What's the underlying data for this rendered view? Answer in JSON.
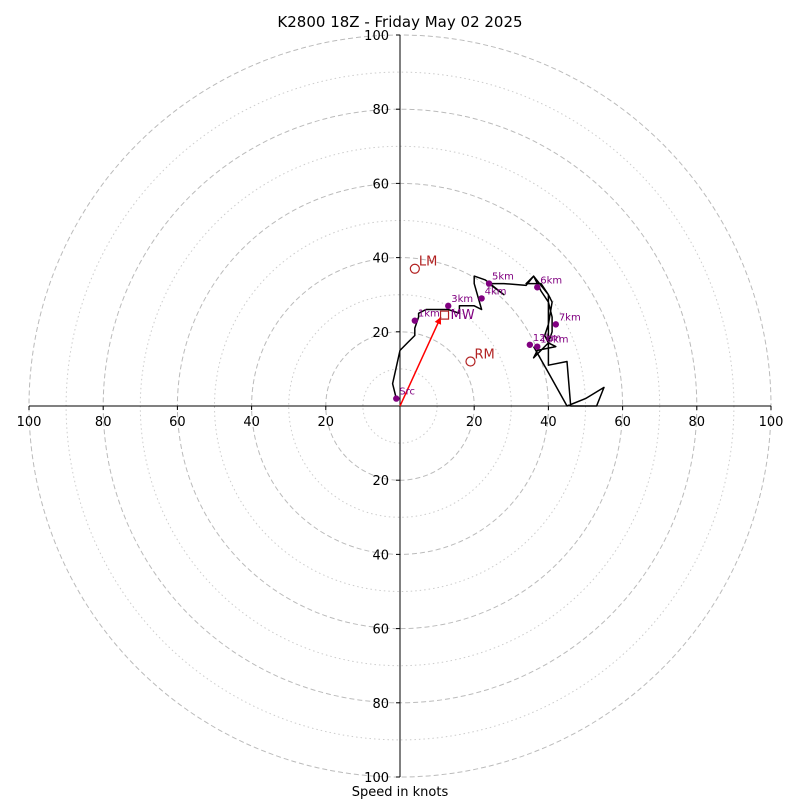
{
  "chart_data": {
    "type": "hodograph",
    "title": "K2800 18Z - Friday May 02 2025",
    "xlabel": "Speed in knots",
    "axis_limit": 100,
    "ring_major": [
      20,
      40,
      60,
      80,
      100
    ],
    "ring_minor": [
      10,
      30,
      50,
      70,
      90
    ],
    "x_ticks": [
      {
        "value": -100,
        "label": "100"
      },
      {
        "value": -80,
        "label": "80"
      },
      {
        "value": -60,
        "label": "60"
      },
      {
        "value": -40,
        "label": "40"
      },
      {
        "value": -20,
        "label": "20"
      },
      {
        "value": 20,
        "label": "20"
      },
      {
        "value": 40,
        "label": "40"
      },
      {
        "value": 60,
        "label": "60"
      },
      {
        "value": 80,
        "label": "80"
      },
      {
        "value": 100,
        "label": "100"
      }
    ],
    "y_ticks": [
      {
        "value": 100,
        "label": "100"
      },
      {
        "value": 80,
        "label": "80"
      },
      {
        "value": 60,
        "label": "60"
      },
      {
        "value": 40,
        "label": "40"
      },
      {
        "value": 20,
        "label": "20"
      },
      {
        "value": -20,
        "label": "20"
      },
      {
        "value": -40,
        "label": "40"
      },
      {
        "value": -60,
        "label": "60"
      },
      {
        "value": -80,
        "label": "80"
      },
      {
        "value": -100,
        "label": "100"
      }
    ],
    "hodograph_line": [
      [
        -1,
        2
      ],
      [
        -2,
        6
      ],
      [
        0,
        15
      ],
      [
        2,
        17
      ],
      [
        4,
        19
      ],
      [
        4,
        21
      ],
      [
        5,
        24
      ],
      [
        5,
        25
      ],
      [
        7,
        26
      ],
      [
        10,
        26
      ],
      [
        13,
        26
      ],
      [
        16,
        25
      ],
      [
        16,
        27
      ],
      [
        20,
        27
      ],
      [
        22,
        26
      ],
      [
        20,
        33
      ],
      [
        20,
        35
      ],
      [
        23,
        34
      ],
      [
        28,
        30
      ],
      [
        24,
        33
      ],
      [
        28,
        33
      ],
      [
        34,
        32.5
      ],
      [
        36,
        35
      ],
      [
        40,
        30
      ],
      [
        41,
        28
      ],
      [
        40,
        22
      ],
      [
        39,
        19
      ],
      [
        40,
        17
      ],
      [
        42,
        16
      ],
      [
        37,
        15
      ],
      [
        36,
        13
      ],
      [
        40,
        17
      ],
      [
        41,
        20
      ],
      [
        41,
        24
      ],
      [
        40,
        28
      ],
      [
        38,
        31
      ],
      [
        36,
        35
      ],
      [
        34,
        33
      ],
      [
        38,
        33
      ],
      [
        40,
        30
      ],
      [
        40,
        23
      ],
      [
        40,
        11
      ],
      [
        45,
        12
      ],
      [
        46,
        0
      ],
      [
        53,
        0
      ],
      [
        55,
        5
      ],
      [
        50,
        2
      ],
      [
        45,
        0
      ],
      [
        40,
        9
      ],
      [
        36,
        16
      ]
    ],
    "height_points": [
      {
        "label": "Src",
        "u": -1,
        "v": 2
      },
      {
        "label": "1km",
        "u": 4,
        "v": 23
      },
      {
        "label": "3km",
        "u": 13,
        "v": 27
      },
      {
        "label": "4km",
        "u": 22,
        "v": 29
      },
      {
        "label": "5km",
        "u": 24,
        "v": 33
      },
      {
        "label": "6km",
        "u": 37,
        "v": 32
      },
      {
        "label": "7km",
        "u": 42,
        "v": 22
      },
      {
        "label": "12km",
        "u": 35,
        "v": 16.5
      },
      {
        "label": "10km",
        "u": 37,
        "v": 16
      }
    ],
    "mean_wind": {
      "label": "MW",
      "u": 12,
      "v": 24.5
    },
    "shear_arrow": {
      "from": [
        0,
        0
      ],
      "to": [
        11,
        24
      ]
    },
    "storm_motion": [
      {
        "label": "LM",
        "u": 4,
        "v": 37
      },
      {
        "label": "RM",
        "u": 19,
        "v": 12
      }
    ],
    "colors": {
      "hodograph": "#000000",
      "height_point": "#800080",
      "storm_motion": "#b22222",
      "shear_arrow": "#ff0000",
      "ring": "#bbbbbb",
      "axis": "#000000"
    }
  }
}
